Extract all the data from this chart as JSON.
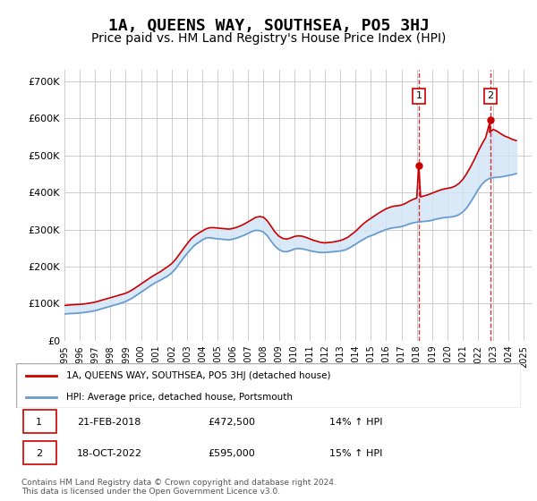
{
  "title": "1A, QUEENS WAY, SOUTHSEA, PO5 3HJ",
  "subtitle": "Price paid vs. HM Land Registry's House Price Index (HPI)",
  "title_fontsize": 13,
  "subtitle_fontsize": 10,
  "background_color": "#ffffff",
  "plot_bg_color": "#ffffff",
  "grid_color": "#cccccc",
  "ylabel_ticks": [
    "£0",
    "£100K",
    "£200K",
    "£300K",
    "£400K",
    "£500K",
    "£600K",
    "£700K"
  ],
  "ylabel_values": [
    0,
    100000,
    200000,
    300000,
    400000,
    500000,
    600000,
    700000
  ],
  "ylim": [
    0,
    730000
  ],
  "xlim_start": 1995.0,
  "xlim_end": 2025.5,
  "red_line_color": "#cc0000",
  "blue_line_color": "#6699cc",
  "shaded_color": "#d0e4f7",
  "dashed_color": "#cc0000",
  "marker1_x": 2018.13,
  "marker1_y": 472500,
  "marker2_x": 2022.8,
  "marker2_y": 595000,
  "legend_label1": "1A, QUEENS WAY, SOUTHSEA, PO5 3HJ (detached house)",
  "legend_label2": "HPI: Average price, detached house, Portsmouth",
  "ann1_label": "1",
  "ann2_label": "2",
  "table_row1": [
    "1",
    "21-FEB-2018",
    "£472,500",
    "14% ↑ HPI"
  ],
  "table_row2": [
    "2",
    "18-OCT-2022",
    "£595,000",
    "15% ↑ HPI"
  ],
  "footnote": "Contains HM Land Registry data © Crown copyright and database right 2024.\nThis data is licensed under the Open Government Licence v3.0.",
  "hpi_years": [
    1995.0,
    1995.25,
    1995.5,
    1995.75,
    1996.0,
    1996.25,
    1996.5,
    1996.75,
    1997.0,
    1997.25,
    1997.5,
    1997.75,
    1998.0,
    1998.25,
    1998.5,
    1998.75,
    1999.0,
    1999.25,
    1999.5,
    1999.75,
    2000.0,
    2000.25,
    2000.5,
    2000.75,
    2001.0,
    2001.25,
    2001.5,
    2001.75,
    2002.0,
    2002.25,
    2002.5,
    2002.75,
    2003.0,
    2003.25,
    2003.5,
    2003.75,
    2004.0,
    2004.25,
    2004.5,
    2004.75,
    2005.0,
    2005.25,
    2005.5,
    2005.75,
    2006.0,
    2006.25,
    2006.5,
    2006.75,
    2007.0,
    2007.25,
    2007.5,
    2007.75,
    2008.0,
    2008.25,
    2008.5,
    2008.75,
    2009.0,
    2009.25,
    2009.5,
    2009.75,
    2010.0,
    2010.25,
    2010.5,
    2010.75,
    2011.0,
    2011.25,
    2011.5,
    2011.75,
    2012.0,
    2012.25,
    2012.5,
    2012.75,
    2013.0,
    2013.25,
    2013.5,
    2013.75,
    2014.0,
    2014.25,
    2014.5,
    2014.75,
    2015.0,
    2015.25,
    2015.5,
    2015.75,
    2016.0,
    2016.25,
    2016.5,
    2016.75,
    2017.0,
    2017.25,
    2017.5,
    2017.75,
    2018.0,
    2018.25,
    2018.5,
    2018.75,
    2019.0,
    2019.25,
    2019.5,
    2019.75,
    2020.0,
    2020.25,
    2020.5,
    2020.75,
    2021.0,
    2021.25,
    2021.5,
    2021.75,
    2022.0,
    2022.25,
    2022.5,
    2022.75,
    2023.0,
    2023.25,
    2023.5,
    2023.75,
    2024.0,
    2024.25,
    2024.5
  ],
  "hpi_values": [
    72000,
    73000,
    73500,
    74000,
    75000,
    76000,
    77500,
    79000,
    81000,
    84000,
    87000,
    90000,
    93000,
    96000,
    99000,
    102000,
    106000,
    111000,
    117000,
    124000,
    131000,
    138000,
    145000,
    152000,
    158000,
    163000,
    169000,
    175000,
    183000,
    194000,
    208000,
    222000,
    235000,
    247000,
    258000,
    265000,
    272000,
    277000,
    278000,
    276000,
    275000,
    274000,
    273000,
    272000,
    274000,
    277000,
    281000,
    285000,
    290000,
    295000,
    298000,
    297000,
    293000,
    283000,
    268000,
    255000,
    246000,
    241000,
    240000,
    243000,
    247000,
    249000,
    248000,
    246000,
    243000,
    241000,
    239000,
    238000,
    238000,
    239000,
    240000,
    241000,
    242000,
    244000,
    248000,
    254000,
    260000,
    267000,
    273000,
    279000,
    283000,
    287000,
    292000,
    296000,
    300000,
    303000,
    305000,
    306000,
    308000,
    311000,
    315000,
    318000,
    320000,
    321000,
    322000,
    323000,
    325000,
    328000,
    330000,
    332000,
    333000,
    334000,
    336000,
    340000,
    347000,
    358000,
    373000,
    390000,
    407000,
    422000,
    432000,
    438000,
    440000,
    441000,
    442000,
    444000,
    446000,
    448000,
    451000
  ],
  "red_years": [
    1995.0,
    1995.25,
    1995.5,
    1995.75,
    1996.0,
    1996.25,
    1996.5,
    1996.75,
    1997.0,
    1997.25,
    1997.5,
    1997.75,
    1998.0,
    1998.25,
    1998.5,
    1998.75,
    1999.0,
    1999.25,
    1999.5,
    1999.75,
    2000.0,
    2000.25,
    2000.5,
    2000.75,
    2001.0,
    2001.25,
    2001.5,
    2001.75,
    2002.0,
    2002.25,
    2002.5,
    2002.75,
    2003.0,
    2003.25,
    2003.5,
    2003.75,
    2004.0,
    2004.25,
    2004.5,
    2004.75,
    2005.0,
    2005.25,
    2005.5,
    2005.75,
    2006.0,
    2006.25,
    2006.5,
    2006.75,
    2007.0,
    2007.25,
    2007.5,
    2007.75,
    2008.0,
    2008.25,
    2008.5,
    2008.75,
    2009.0,
    2009.25,
    2009.5,
    2009.75,
    2010.0,
    2010.25,
    2010.5,
    2010.75,
    2011.0,
    2011.25,
    2011.5,
    2011.75,
    2012.0,
    2012.25,
    2012.5,
    2012.75,
    2013.0,
    2013.25,
    2013.5,
    2013.75,
    2014.0,
    2014.25,
    2014.5,
    2014.75,
    2015.0,
    2015.25,
    2015.5,
    2015.75,
    2016.0,
    2016.25,
    2016.5,
    2016.75,
    2017.0,
    2017.25,
    2017.5,
    2017.75,
    2018.0,
    2018.13,
    2018.25,
    2018.5,
    2018.75,
    2019.0,
    2019.25,
    2019.5,
    2019.75,
    2020.0,
    2020.25,
    2020.5,
    2020.75,
    2021.0,
    2021.25,
    2021.5,
    2021.75,
    2022.0,
    2022.25,
    2022.5,
    2022.8,
    2022.75,
    2023.0,
    2023.25,
    2023.5,
    2023.75,
    2024.0,
    2024.25,
    2024.5
  ],
  "red_values": [
    95000,
    96000,
    97000,
    97500,
    98000,
    99000,
    100500,
    102000,
    104000,
    107000,
    110000,
    113000,
    116000,
    119000,
    122000,
    125000,
    128000,
    133000,
    139000,
    146000,
    153000,
    160000,
    167000,
    174000,
    180000,
    186000,
    193000,
    200000,
    208000,
    219000,
    233000,
    247000,
    261000,
    274000,
    283000,
    290000,
    296000,
    302000,
    305000,
    305000,
    304000,
    303000,
    302000,
    301000,
    303000,
    306000,
    310000,
    315000,
    321000,
    327000,
    333000,
    335000,
    333000,
    323000,
    308000,
    293000,
    282000,
    276000,
    274000,
    277000,
    281000,
    283000,
    282000,
    279000,
    275000,
    271000,
    268000,
    265000,
    264000,
    265000,
    266000,
    268000,
    270000,
    274000,
    279000,
    287000,
    295000,
    305000,
    315000,
    323000,
    330000,
    337000,
    344000,
    350000,
    356000,
    360000,
    363000,
    364000,
    366000,
    370000,
    376000,
    381000,
    385000,
    472500,
    388000,
    391000,
    394000,
    398000,
    402000,
    406000,
    409000,
    411000,
    413000,
    417000,
    424000,
    435000,
    450000,
    468000,
    488000,
    510000,
    530000,
    548000,
    595000,
    562000,
    570000,
    565000,
    558000,
    552000,
    548000,
    543000,
    540000
  ]
}
